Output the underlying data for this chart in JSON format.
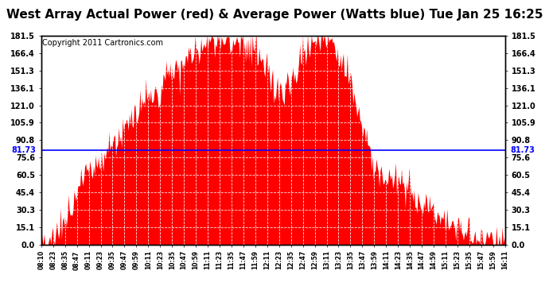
{
  "title": "West Array Actual Power (red) & Average Power (Watts blue) Tue Jan 25 16:25",
  "copyright": "Copyright 2011 Cartronics.com",
  "ymin": 0.0,
  "ymax": 181.5,
  "yticks": [
    0.0,
    15.1,
    30.3,
    45.4,
    60.5,
    75.6,
    90.8,
    105.9,
    121.0,
    136.1,
    151.3,
    166.4,
    181.5
  ],
  "avg_power": 81.73,
  "fill_color": "#FF0000",
  "line_color": "#0000FF",
  "bg_color": "#FFFFFF",
  "title_fontsize": 11,
  "copyright_fontsize": 7,
  "xtick_labels": [
    "08:10",
    "08:23",
    "08:35",
    "08:47",
    "09:11",
    "09:23",
    "09:35",
    "09:47",
    "09:59",
    "10:11",
    "10:23",
    "10:35",
    "10:47",
    "10:59",
    "11:11",
    "11:23",
    "11:35",
    "11:47",
    "11:59",
    "12:11",
    "12:23",
    "12:35",
    "12:47",
    "12:59",
    "13:11",
    "13:23",
    "13:35",
    "13:47",
    "13:59",
    "14:11",
    "14:23",
    "14:35",
    "14:47",
    "14:59",
    "15:11",
    "15:23",
    "15:35",
    "15:47",
    "15:59",
    "16:11"
  ]
}
